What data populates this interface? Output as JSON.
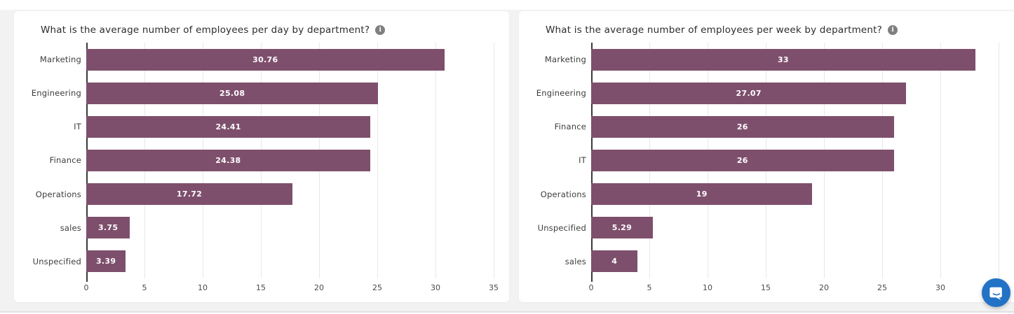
{
  "page": {
    "background_color": "#f2f2f2",
    "card_color": "#ffffff",
    "bar_color": "#7e4f6c",
    "gridline_color": "#e8e8e8",
    "axis_line_color": "#3a3a3a",
    "chat_launcher_color": "#2272c5"
  },
  "chart_data": [
    {
      "type": "bar",
      "orientation": "horizontal",
      "title": "What is the average number of employees per day by department?",
      "info_icon": "i",
      "categories": [
        "Marketing",
        "Engineering",
        "IT",
        "Finance",
        "Operations",
        "sales",
        "Unspecified"
      ],
      "values": [
        30.76,
        25.08,
        24.41,
        24.38,
        17.72,
        3.75,
        3.39
      ],
      "value_labels": [
        "30.76",
        "25.08",
        "24.41",
        "24.38",
        "17.72",
        "3.75",
        "3.39"
      ],
      "xlim": [
        0,
        35
      ],
      "xticks": [
        0,
        5,
        10,
        15,
        20,
        25,
        30,
        35
      ],
      "xtick_labels": [
        "0",
        "5",
        "10",
        "15",
        "20",
        "25",
        "30",
        "35"
      ],
      "grid": true,
      "legend": false,
      "bar_color": "#7e4f6c"
    },
    {
      "type": "bar",
      "orientation": "horizontal",
      "title": "What is the average number of employees per week by department?",
      "info_icon": "i",
      "categories": [
        "Marketing",
        "Engineering",
        "Finance",
        "IT",
        "Operations",
        "Unspecified",
        "sales"
      ],
      "values": [
        33,
        27.07,
        26,
        26,
        19,
        5.29,
        4
      ],
      "value_labels": [
        "33",
        "27.07",
        "26",
        "26",
        "19",
        "5.29",
        "4"
      ],
      "xlim": [
        0,
        35
      ],
      "xticks": [
        0,
        5,
        10,
        15,
        20,
        25,
        30,
        35
      ],
      "xtick_labels": [
        "0",
        "5",
        "10",
        "15",
        "20",
        "25",
        "30",
        ""
      ],
      "grid": true,
      "legend": false,
      "bar_color": "#7e4f6c"
    }
  ],
  "widgets": {
    "chat_launcher": {
      "icon": "chat-bubble"
    }
  }
}
